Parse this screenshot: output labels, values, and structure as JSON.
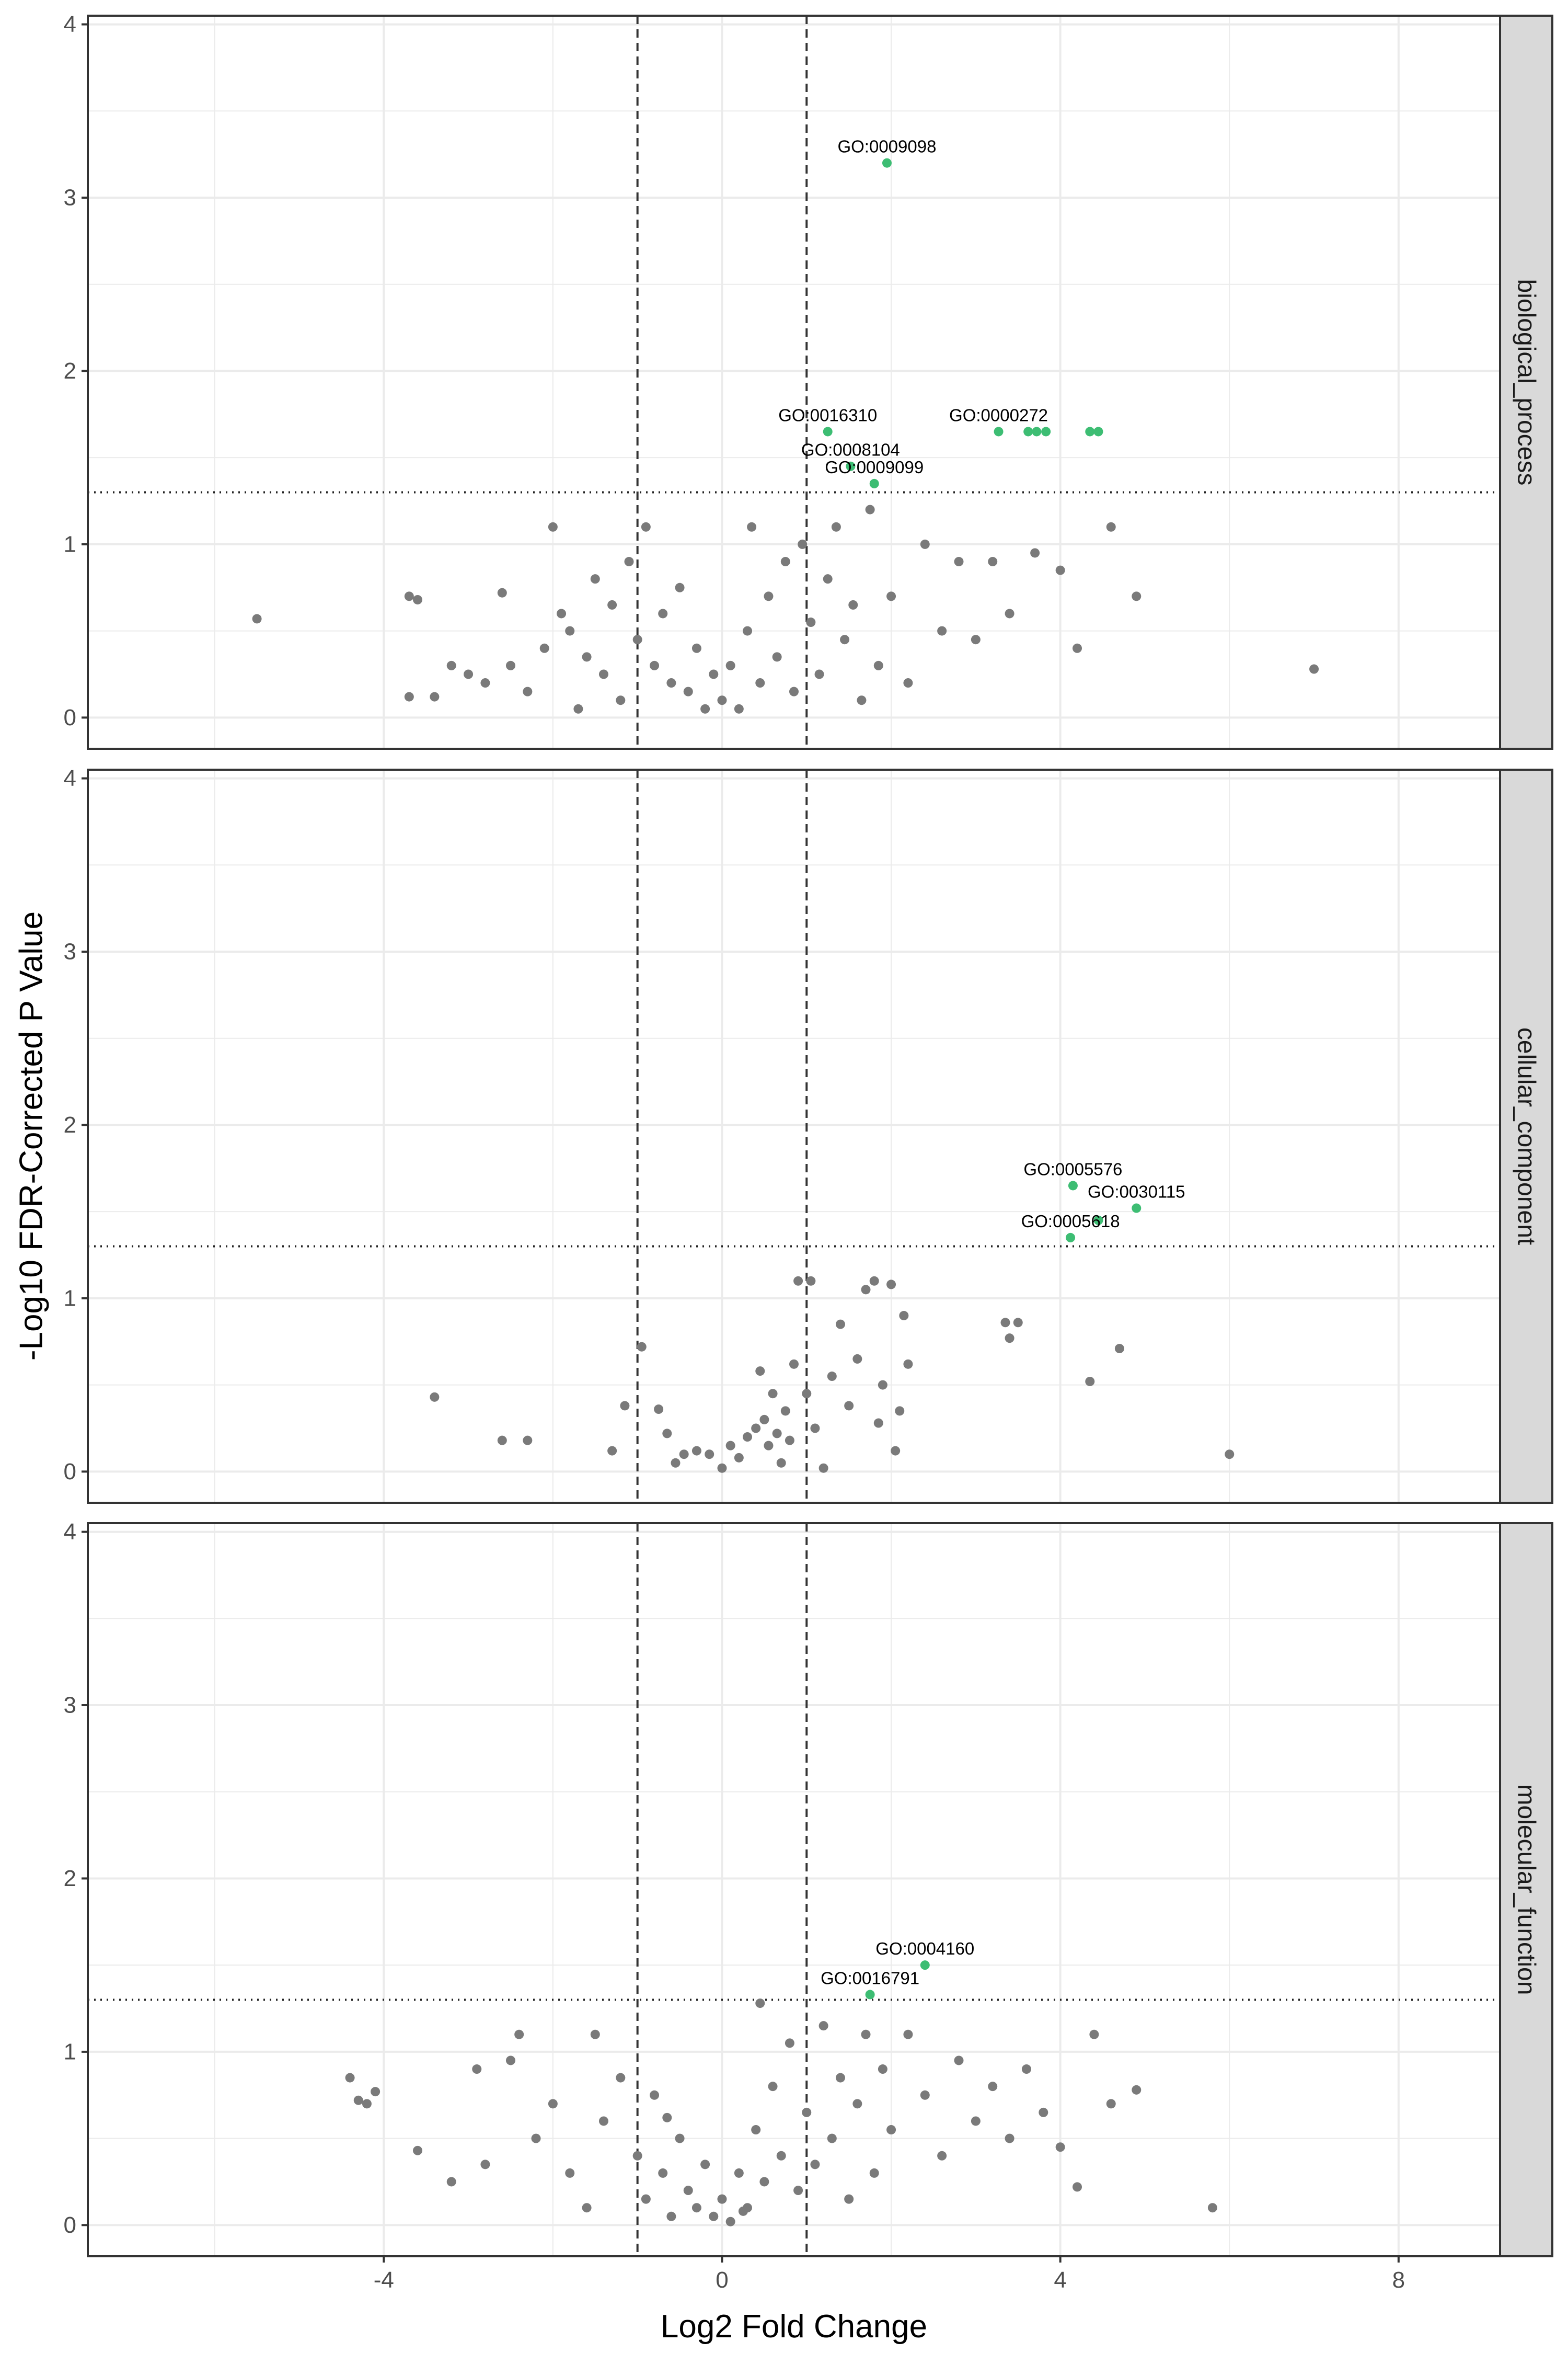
{
  "chart_data": {
    "type": "scatter",
    "xlabel": "Log2 Fold Change",
    "ylabel": "-Log10 FDR-Corrected P Value",
    "xlim": [
      -7.5,
      9.2
    ],
    "ylim": [
      -0.18,
      4.05
    ],
    "x_ticks": [
      -4,
      0,
      4,
      8
    ],
    "x_tick_labels": [
      "-4",
      "0",
      "4",
      "8"
    ],
    "y_ticks": [
      0,
      1,
      2,
      3,
      4
    ],
    "y_tick_labels": [
      "0",
      "1",
      "2",
      "3",
      "4"
    ],
    "vlines": [
      -1,
      1
    ],
    "hline": 1.3,
    "grid": true,
    "colors": {
      "significant": "#3dbd73",
      "not_significant": "#7a7a7a",
      "strip": "#d9d9d9",
      "grid": "#ebebeb"
    },
    "facets": [
      {
        "label": "biological_process",
        "significant": [
          {
            "x": 1.95,
            "y": 3.2,
            "label": "GO:0009098"
          },
          {
            "x": 1.25,
            "y": 1.65,
            "label": "GO:0016310"
          },
          {
            "x": 3.27,
            "y": 1.65,
            "label": "GO:0000272"
          },
          {
            "x": 3.62,
            "y": 1.65
          },
          {
            "x": 3.72,
            "y": 1.65
          },
          {
            "x": 3.83,
            "y": 1.65
          },
          {
            "x": 4.35,
            "y": 1.65
          },
          {
            "x": 4.45,
            "y": 1.65
          },
          {
            "x": 1.52,
            "y": 1.45,
            "label": "GO:0008104"
          },
          {
            "x": 1.8,
            "y": 1.35,
            "label": "GO:0009099"
          }
        ],
        "non_significant": [
          [
            -5.5,
            0.57
          ],
          [
            -3.7,
            0.7
          ],
          [
            -3.7,
            0.12
          ],
          [
            -3.6,
            0.68
          ],
          [
            -3.4,
            0.12
          ],
          [
            -3.2,
            0.3
          ],
          [
            -3.0,
            0.25
          ],
          [
            -2.8,
            0.2
          ],
          [
            -2.5,
            0.3
          ],
          [
            -2.3,
            0.15
          ],
          [
            -2.1,
            0.4
          ],
          [
            -2.0,
            1.1
          ],
          [
            -1.9,
            0.6
          ],
          [
            -1.8,
            0.5
          ],
          [
            -1.6,
            0.35
          ],
          [
            -1.5,
            0.8
          ],
          [
            -1.4,
            0.25
          ],
          [
            -1.3,
            0.65
          ],
          [
            -1.2,
            0.1
          ],
          [
            -1.1,
            0.9
          ],
          [
            -1.0,
            0.45
          ],
          [
            -0.9,
            1.1
          ],
          [
            -0.8,
            0.3
          ],
          [
            -0.7,
            0.6
          ],
          [
            -0.6,
            0.2
          ],
          [
            -0.5,
            0.75
          ],
          [
            -0.4,
            0.15
          ],
          [
            -0.3,
            0.4
          ],
          [
            -0.2,
            0.05
          ],
          [
            -0.1,
            0.25
          ],
          [
            0.0,
            0.1
          ],
          [
            0.1,
            0.3
          ],
          [
            0.2,
            0.05
          ],
          [
            0.3,
            0.5
          ],
          [
            0.35,
            1.1
          ],
          [
            0.45,
            0.2
          ],
          [
            0.55,
            0.7
          ],
          [
            0.65,
            0.35
          ],
          [
            0.75,
            0.9
          ],
          [
            0.85,
            0.15
          ],
          [
            0.95,
            1.0
          ],
          [
            1.05,
            0.55
          ],
          [
            1.15,
            0.25
          ],
          [
            1.25,
            0.8
          ],
          [
            1.35,
            1.1
          ],
          [
            1.45,
            0.45
          ],
          [
            1.55,
            0.65
          ],
          [
            1.65,
            0.1
          ],
          [
            1.75,
            1.2
          ],
          [
            1.85,
            0.3
          ],
          [
            2.0,
            0.7
          ],
          [
            2.2,
            0.2
          ],
          [
            2.4,
            1.0
          ],
          [
            2.6,
            0.5
          ],
          [
            2.8,
            0.9
          ],
          [
            3.0,
            0.45
          ],
          [
            3.2,
            0.9
          ],
          [
            3.4,
            0.6
          ],
          [
            3.7,
            0.95
          ],
          [
            4.0,
            0.85
          ],
          [
            4.2,
            0.4
          ],
          [
            4.6,
            1.1
          ],
          [
            4.9,
            0.7
          ],
          [
            7.0,
            0.28
          ],
          [
            -2.6,
            0.72
          ],
          [
            -1.7,
            0.05
          ]
        ]
      },
      {
        "label": "cellular_component",
        "significant": [
          {
            "x": 4.15,
            "y": 1.65,
            "label": "GO:0005576"
          },
          {
            "x": 4.9,
            "y": 1.52,
            "label": "GO:0030115"
          },
          {
            "x": 4.45,
            "y": 1.45
          },
          {
            "x": 4.12,
            "y": 1.35,
            "label": "GO:0005618"
          }
        ],
        "non_significant": [
          [
            -3.4,
            0.43
          ],
          [
            -2.6,
            0.18
          ],
          [
            -2.3,
            0.18
          ],
          [
            -1.3,
            0.12
          ],
          [
            -1.15,
            0.38
          ],
          [
            -0.95,
            0.72
          ],
          [
            -0.75,
            0.36
          ],
          [
            -0.65,
            0.22
          ],
          [
            -0.55,
            0.05
          ],
          [
            -0.45,
            0.1
          ],
          [
            -0.3,
            0.12
          ],
          [
            -0.15,
            0.1
          ],
          [
            0.0,
            0.02
          ],
          [
            0.1,
            0.15
          ],
          [
            0.2,
            0.08
          ],
          [
            0.3,
            0.2
          ],
          [
            0.4,
            0.25
          ],
          [
            0.45,
            0.58
          ],
          [
            0.5,
            0.3
          ],
          [
            0.55,
            0.15
          ],
          [
            0.6,
            0.45
          ],
          [
            0.65,
            0.22
          ],
          [
            0.7,
            0.05
          ],
          [
            0.75,
            0.35
          ],
          [
            0.8,
            0.18
          ],
          [
            0.85,
            0.62
          ],
          [
            0.9,
            1.1
          ],
          [
            1.0,
            0.45
          ],
          [
            1.05,
            1.1
          ],
          [
            1.1,
            0.25
          ],
          [
            1.2,
            0.02
          ],
          [
            1.3,
            0.55
          ],
          [
            1.4,
            0.85
          ],
          [
            1.5,
            0.38
          ],
          [
            1.6,
            0.65
          ],
          [
            1.7,
            1.05
          ],
          [
            1.8,
            1.1
          ],
          [
            1.9,
            0.5
          ],
          [
            2.0,
            1.08
          ],
          [
            2.1,
            0.35
          ],
          [
            2.2,
            0.62
          ],
          [
            1.85,
            0.28
          ],
          [
            2.05,
            0.12
          ],
          [
            2.15,
            0.9
          ],
          [
            3.35,
            0.86
          ],
          [
            3.4,
            0.77
          ],
          [
            3.5,
            0.86
          ],
          [
            4.35,
            0.52
          ],
          [
            4.7,
            0.71
          ],
          [
            6.0,
            0.1
          ]
        ]
      },
      {
        "label": "molecular_function",
        "significant": [
          {
            "x": 2.4,
            "y": 1.5,
            "label": "GO:0004160"
          },
          {
            "x": 1.75,
            "y": 1.33,
            "label": "GO:0016791"
          }
        ],
        "non_significant": [
          [
            -4.4,
            0.85
          ],
          [
            -4.3,
            0.72
          ],
          [
            -4.2,
            0.7
          ],
          [
            -4.1,
            0.77
          ],
          [
            -3.6,
            0.43
          ],
          [
            -3.2,
            0.25
          ],
          [
            -2.8,
            0.35
          ],
          [
            -2.5,
            0.95
          ],
          [
            -2.4,
            1.1
          ],
          [
            -2.2,
            0.5
          ],
          [
            -2.0,
            0.7
          ],
          [
            -1.8,
            0.3
          ],
          [
            -1.6,
            0.1
          ],
          [
            -1.4,
            0.6
          ],
          [
            -1.2,
            0.85
          ],
          [
            -1.0,
            0.4
          ],
          [
            -0.9,
            0.15
          ],
          [
            -0.8,
            0.75
          ],
          [
            -0.7,
            0.3
          ],
          [
            -0.6,
            0.05
          ],
          [
            -0.5,
            0.5
          ],
          [
            -0.4,
            0.2
          ],
          [
            -0.3,
            0.1
          ],
          [
            -0.2,
            0.35
          ],
          [
            -0.1,
            0.05
          ],
          [
            0.0,
            0.15
          ],
          [
            0.1,
            0.02
          ],
          [
            0.2,
            0.3
          ],
          [
            0.3,
            0.1
          ],
          [
            0.4,
            0.55
          ],
          [
            0.45,
            1.28
          ],
          [
            0.5,
            0.25
          ],
          [
            0.6,
            0.8
          ],
          [
            0.7,
            0.4
          ],
          [
            0.8,
            1.05
          ],
          [
            0.9,
            0.2
          ],
          [
            1.0,
            0.65
          ],
          [
            1.1,
            0.35
          ],
          [
            1.2,
            1.15
          ],
          [
            1.3,
            0.5
          ],
          [
            1.4,
            0.85
          ],
          [
            1.5,
            0.15
          ],
          [
            1.6,
            0.7
          ],
          [
            1.7,
            1.1
          ],
          [
            1.8,
            0.3
          ],
          [
            1.9,
            0.9
          ],
          [
            2.0,
            0.55
          ],
          [
            2.2,
            1.1
          ],
          [
            2.4,
            0.75
          ],
          [
            2.6,
            0.4
          ],
          [
            2.8,
            0.95
          ],
          [
            3.0,
            0.6
          ],
          [
            3.2,
            0.8
          ],
          [
            3.4,
            0.5
          ],
          [
            3.6,
            0.9
          ],
          [
            3.8,
            0.65
          ],
          [
            4.0,
            0.45
          ],
          [
            4.2,
            0.22
          ],
          [
            4.4,
            1.1
          ],
          [
            4.6,
            0.7
          ],
          [
            4.9,
            0.78
          ],
          [
            5.8,
            0.1
          ],
          [
            -0.65,
            0.62
          ],
          [
            0.25,
            0.08
          ],
          [
            -1.5,
            1.1
          ],
          [
            -2.9,
            0.9
          ]
        ]
      }
    ]
  }
}
